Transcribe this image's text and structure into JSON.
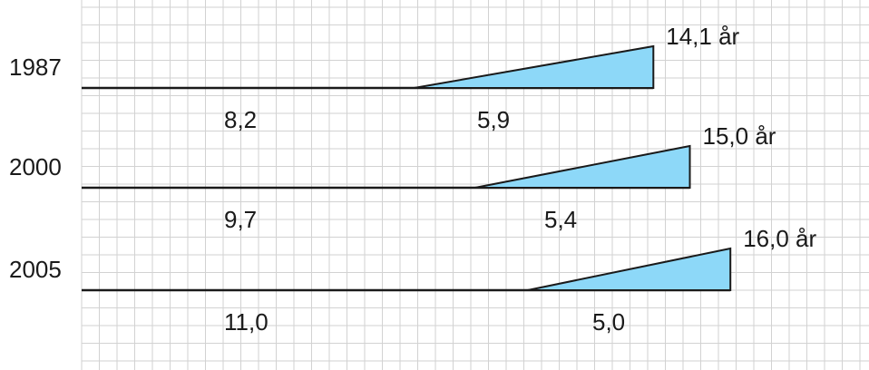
{
  "chart_data": {
    "type": "bar",
    "categories": [
      "1987",
      "2000",
      "2005"
    ],
    "series": [
      {
        "values": [
          8.2,
          9.7,
          11.0
        ]
      },
      {
        "values": [
          5.9,
          5.4,
          5.0
        ]
      }
    ],
    "segment_labels": [
      [
        "8,2",
        "5,9"
      ],
      [
        "9,7",
        "5,4"
      ],
      [
        "11,0",
        "5,0"
      ]
    ],
    "totals": [
      14.1,
      15.0,
      16.0
    ],
    "total_labels": [
      "14,1 år",
      "15,0 år",
      "16,0 år"
    ],
    "grid": true,
    "colors": {
      "triangle_fill": "#8dd8f8",
      "line": "#1a1a1a",
      "grid_line": "#d2d2d2",
      "text": "#1a1a1a"
    }
  }
}
